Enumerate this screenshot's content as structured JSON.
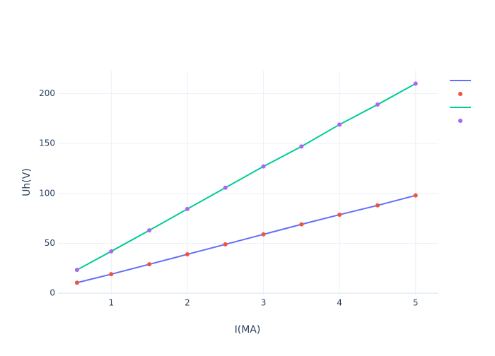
{
  "chart_data": {
    "type": "line",
    "xlabel": "I(MA)",
    "ylabel": "Uh(V)",
    "x": [
      0.55,
      1,
      1.5,
      2,
      2.5,
      3,
      3.5,
      4,
      4.5,
      5
    ],
    "series": [
      {
        "mode": "lines",
        "color": "#636efa",
        "values": [
          10.6,
          19.1,
          29,
          39,
          49,
          59,
          69,
          78.7,
          88,
          98
        ]
      },
      {
        "mode": "markers",
        "color": "#ef553b",
        "values": [
          10.6,
          19.1,
          29,
          39,
          49,
          59,
          69,
          78.7,
          88,
          98
        ]
      },
      {
        "mode": "lines",
        "color": "#00cc96",
        "values": [
          23.4,
          42,
          63,
          84.4,
          105.7,
          127,
          147,
          169,
          189,
          210
        ]
      },
      {
        "mode": "markers",
        "color": "#ab63fa",
        "values": [
          23.4,
          42,
          63,
          84.4,
          105.7,
          127,
          147,
          169,
          189,
          210
        ]
      }
    ],
    "xlim": [
      0.3,
      5.3
    ],
    "xticks": [
      1,
      2,
      3,
      4,
      5
    ],
    "ylim": [
      -2,
      223
    ],
    "yticks": [
      0,
      50,
      100,
      150,
      200
    ],
    "grid": true,
    "legend": "right"
  }
}
